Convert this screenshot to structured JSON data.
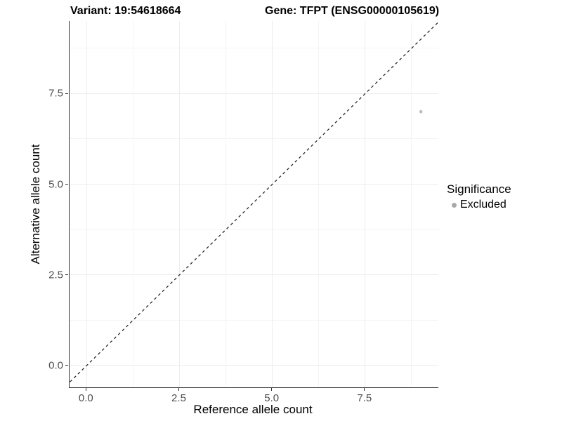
{
  "titles": {
    "variant": "Variant: 19:54618664",
    "gene": "Gene: TFPT (ENSG00000105619)"
  },
  "axes": {
    "x_label": "Reference allele count",
    "y_label": "Alternative allele count"
  },
  "legend": {
    "title": "Significance",
    "items": [
      {
        "label": "Excluded",
        "color": "#a8a8a8"
      }
    ]
  },
  "chart_data": {
    "type": "scatter",
    "title_left": "Variant: 19:54618664",
    "title_right": "Gene: TFPT (ENSG00000105619)",
    "xlabel": "Reference allele count",
    "ylabel": "Alternative allele count",
    "points": [
      {
        "x": 9,
        "y": 7,
        "significance": "Excluded",
        "color": "#bcbcbc"
      }
    ],
    "reference_line": {
      "type": "identity",
      "slope": 1,
      "intercept": 0,
      "style": "dashed",
      "color": "#1a1a1a"
    },
    "xlim": [
      -0.46,
      9.47
    ],
    "ylim": [
      -0.6,
      9.5
    ],
    "major_ticks": [
      0,
      2.5,
      5,
      7.5
    ],
    "minor_ticks": [
      1.25,
      3.75,
      6.25,
      8.75
    ],
    "tick_label_format": "one_decimal",
    "grid": "major+minor",
    "legend_position": "right",
    "legend_title": "Significance",
    "legend_entries": [
      "Excluded"
    ]
  }
}
